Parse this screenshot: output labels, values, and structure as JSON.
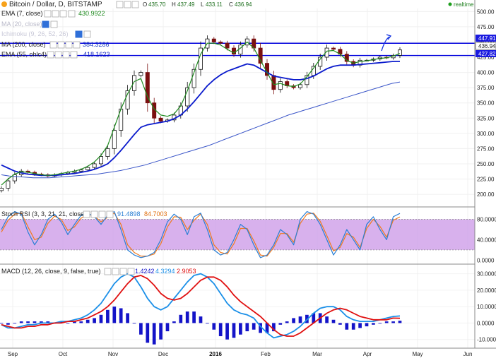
{
  "title": "Bitcoin / Dollar, D, BITSTAMP",
  "ohlc": {
    "open": "O",
    "open_v": "435.70",
    "high": "H",
    "high_v": "437.49",
    "low": "L",
    "low_v": "433.11",
    "close": "C",
    "close_v": "436.94"
  },
  "realtime_label": "realtime",
  "indicators": {
    "ema7": {
      "label": "EMA (7, close)",
      "value": "430.9922"
    },
    "ma20": {
      "label": "MA (20, close)"
    },
    "ichimoku": {
      "label": "Ichimoku (9, 26, 52, 26)"
    },
    "ma200": {
      "label": "MA (200, close)",
      "value": "384.3286"
    },
    "ema55": {
      "label": "EMA (55, ohlc4)",
      "value": "418.1623"
    }
  },
  "price_tags": {
    "upper": "447.91",
    "close": "436.94",
    "lower": "427.82"
  },
  "stoch": {
    "label": "Stoch RSI (3, 3, 21, 21, close)",
    "k": "91.4898",
    "d": "84.7003"
  },
  "macd": {
    "label": "MACD (12, 26, close, 9, false, true)",
    "hist": "1.4242",
    "macd": "4.3294",
    "signal": "2.9053"
  },
  "colors": {
    "ema7": "#1e8a1e",
    "ema55": "#0a1acc",
    "ma200": "#3a55c8",
    "hline": "#0000dd",
    "stoch_k": "#2a7fd4",
    "stoch_d": "#f07a1e",
    "stoch_band": "#ce9ee8",
    "macd_line": "#1c90e8",
    "signal_line": "#e01010",
    "hist": "#1414c8",
    "up": "#111111",
    "down": "#7a1010"
  },
  "chart_data": [
    {
      "type": "candlestick",
      "title": "Bitcoin / Dollar, D, BITSTAMP",
      "x_ticks": [
        "Sep",
        "Oct",
        "Nov",
        "Dec",
        "2016",
        "Feb",
        "Mar",
        "Apr",
        "May",
        "Jun"
      ],
      "y_ticks": [
        "500.00",
        "475.00",
        "450.00",
        "425.00",
        "400.00",
        "375.00",
        "350.00",
        "325.00",
        "300.00",
        "275.00",
        "250.00",
        "225.00",
        "200.00"
      ],
      "ylim": [
        185,
        505
      ],
      "horizontal_levels": [
        447.91,
        427.82
      ],
      "close_series": [
        210,
        222,
        232,
        238,
        236,
        233,
        232,
        230,
        232,
        234,
        236,
        238,
        240,
        244,
        250,
        262,
        275,
        305,
        340,
        370,
        395,
        400,
        350,
        325,
        320,
        322,
        330,
        345,
        375,
        405,
        440,
        455,
        450,
        448,
        440,
        430,
        445,
        455,
        440,
        415,
        395,
        372,
        385,
        378,
        375,
        380,
        395,
        410,
        425,
        440,
        438,
        430,
        418,
        412,
        420,
        420,
        422,
        425,
        424,
        428,
        436.94
      ],
      "ema7_series": [
        215,
        225,
        233,
        237,
        236,
        234,
        232,
        231,
        232,
        234,
        236,
        238,
        241,
        246,
        253,
        264,
        280,
        310,
        340,
        365,
        385,
        390,
        360,
        340,
        330,
        328,
        332,
        345,
        370,
        400,
        430,
        448,
        448,
        445,
        438,
        432,
        440,
        450,
        440,
        420,
        400,
        380,
        382,
        378,
        377,
        381,
        393,
        407,
        422,
        435,
        436,
        430,
        420,
        415,
        418,
        419,
        421,
        423,
        424,
        427,
        430.99
      ],
      "ema55_series": [
        248,
        243,
        238,
        235,
        233,
        232,
        231,
        231,
        231,
        232,
        233,
        234,
        236,
        238,
        241,
        245,
        250,
        260,
        272,
        285,
        298,
        310,
        314,
        316,
        318,
        320,
        324,
        330,
        340,
        352,
        365,
        378,
        388,
        396,
        402,
        406,
        410,
        414,
        412,
        406,
        400,
        394,
        392,
        390,
        388,
        388,
        390,
        394,
        400,
        406,
        410,
        412,
        412,
        412,
        413,
        414,
        415,
        416,
        417,
        418,
        418.16
      ],
      "ma200_series": [
        232,
        230,
        229,
        228,
        227,
        227,
        227,
        228,
        229,
        230,
        231,
        232,
        233,
        235,
        237,
        239,
        242,
        245,
        248,
        252,
        256,
        260,
        264,
        268,
        272,
        276,
        280,
        285,
        290,
        295,
        300,
        305,
        310,
        315,
        320,
        325,
        330,
        334,
        338,
        342,
        346,
        350,
        354,
        358,
        362,
        366,
        370,
        374,
        378,
        382,
        384.33
      ]
    },
    {
      "type": "line",
      "title": "Stoch RSI (3, 3, 21, 21, close)",
      "y_ticks": [
        "80.0000",
        "40.0000",
        "0.0000"
      ],
      "ylim": [
        -5,
        100
      ],
      "band": [
        20,
        80
      ],
      "series": [
        {
          "name": "K",
          "values": [
            60,
            85,
            95,
            90,
            55,
            30,
            50,
            80,
            90,
            75,
            50,
            70,
            88,
            92,
            85,
            70,
            88,
            95,
            60,
            20,
            10,
            5,
            8,
            15,
            40,
            75,
            90,
            80,
            50,
            85,
            92,
            60,
            20,
            10,
            15,
            40,
            70,
            60,
            30,
            5,
            10,
            30,
            60,
            50,
            30,
            80,
            95,
            90,
            70,
            40,
            10,
            30,
            60,
            40,
            20,
            70,
            85,
            60,
            40,
            85,
            91.49
          ]
        },
        {
          "name": "D",
          "values": [
            55,
            78,
            90,
            92,
            65,
            40,
            45,
            72,
            86,
            80,
            58,
            65,
            82,
            90,
            86,
            75,
            84,
            92,
            70,
            30,
            15,
            8,
            8,
            12,
            32,
            65,
            85,
            84,
            60,
            78,
            90,
            70,
            30,
            15,
            12,
            32,
            62,
            62,
            38,
            10,
            8,
            25,
            52,
            52,
            35,
            72,
            90,
            92,
            76,
            48,
            18,
            25,
            52,
            45,
            25,
            62,
            80,
            66,
            45,
            78,
            84.7
          ]
        }
      ]
    },
    {
      "type": "bar",
      "title": "MACD (12, 26, close, 9, false, true)",
      "y_ticks": [
        "30.0000",
        "20.0000",
        "10.0000",
        "0.0000",
        "-10.0000"
      ],
      "ylim": [
        -14,
        35
      ],
      "series": [
        {
          "name": "MACD",
          "values": [
            -1,
            -3,
            -3,
            -2,
            -1,
            -1,
            0,
            0,
            0,
            1,
            1,
            2,
            3,
            5,
            8,
            12,
            18,
            24,
            28,
            30,
            28,
            22,
            15,
            10,
            8,
            10,
            15,
            20,
            25,
            29,
            30,
            28,
            24,
            18,
            12,
            8,
            6,
            5,
            3,
            -2,
            -6,
            -9,
            -8,
            -7,
            -5,
            -2,
            2,
            6,
            9,
            10,
            10,
            8,
            4,
            2,
            1,
            1,
            1,
            2,
            3,
            4,
            4.33
          ]
        },
        {
          "name": "Signal",
          "values": [
            -1,
            -2,
            -3,
            -3,
            -2,
            -2,
            -1,
            -1,
            0,
            0,
            1,
            1,
            2,
            3,
            5,
            7,
            10,
            14,
            19,
            24,
            28,
            29,
            27,
            23,
            18,
            15,
            14,
            15,
            18,
            22,
            26,
            28,
            28,
            26,
            22,
            17,
            13,
            10,
            7,
            4,
            0,
            -4,
            -7,
            -8,
            -8,
            -6,
            -3,
            0,
            3,
            6,
            8,
            9,
            8,
            6,
            4,
            3,
            2,
            2,
            2,
            3,
            2.91
          ]
        },
        {
          "name": "Histogram",
          "values": [
            0,
            -1,
            0,
            1,
            1,
            1,
            1,
            1,
            0,
            1,
            0,
            1,
            1,
            2,
            3,
            5,
            8,
            10,
            9,
            6,
            0,
            -7,
            -12,
            -13,
            -10,
            -5,
            1,
            5,
            7,
            7,
            4,
            0,
            -4,
            -8,
            -10,
            -9,
            -7,
            -5,
            -4,
            -6,
            -6,
            -5,
            -1,
            1,
            3,
            4,
            5,
            6,
            6,
            4,
            2,
            -1,
            -4,
            -4,
            -3,
            -2,
            -1,
            0,
            1,
            1,
            1.42
          ]
        }
      ]
    }
  ]
}
